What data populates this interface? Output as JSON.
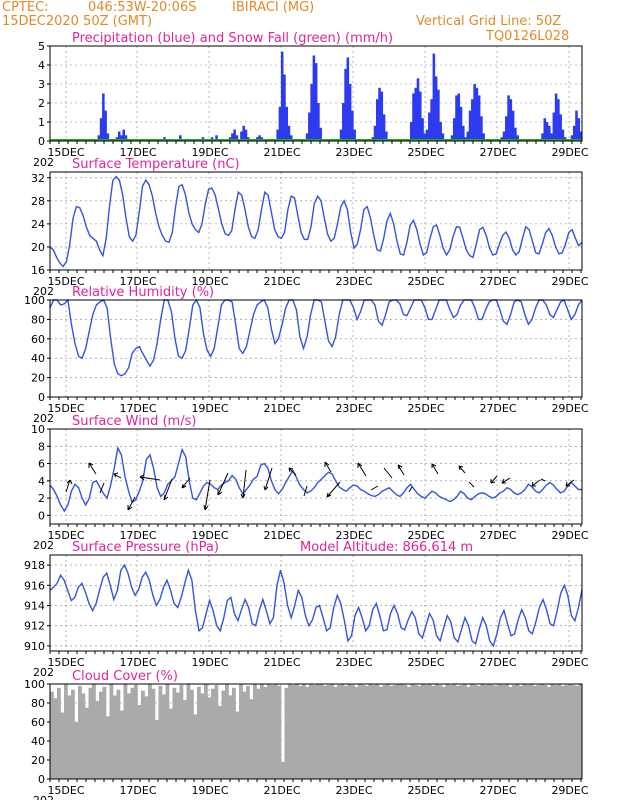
{
  "header": {
    "source": "CPTEC:",
    "coords": "046:53W-20:06S",
    "location": "IBIRACI (MG)",
    "date": "15DEC2020 50Z (GMT)",
    "grid_note": "Vertical Grid Line: 50Z",
    "model_id": "TQ0126L028"
  },
  "colors": {
    "header": "#e08a2a",
    "title": "#e0249a",
    "series": "#3355dd",
    "precip": "#2d3bf0",
    "snow": "#22aa22",
    "cloud": "#aaaaaa"
  },
  "x_labels": [
    "15DEC",
    "17DEC",
    "19DEC",
    "21DEC",
    "23DEC",
    "25DEC",
    "27DEC",
    "29DEC"
  ],
  "stub": "202",
  "chart_data": [
    {
      "type": "bar",
      "title": "Precipitation (blue) and Snow Fall (green) (mm/h)",
      "series": [
        {
          "name": "Precipitation",
          "values": [
            0,
            0,
            0,
            0,
            0,
            0,
            0,
            0,
            0,
            0,
            0,
            0,
            0,
            0,
            0,
            0,
            0,
            0,
            0,
            0,
            0,
            0.3,
            1.2,
            2.5,
            1.6,
            0.4,
            0,
            0,
            0,
            0.2,
            0.5,
            0.3,
            0.6,
            0.3,
            0,
            0,
            0,
            0,
            0,
            0,
            0,
            0,
            0,
            0,
            0,
            0,
            0,
            0,
            0,
            0,
            0.2,
            0,
            0,
            0,
            0,
            0,
            0,
            0.3,
            0,
            0,
            0,
            0,
            0,
            0,
            0,
            0,
            0,
            0.2,
            0,
            0,
            0,
            0.2,
            0,
            0.3,
            0,
            0,
            0,
            0,
            0,
            0.2,
            0.4,
            0.6,
            0.3,
            0,
            0.5,
            0.8,
            0.6,
            0.2,
            0,
            0,
            0,
            0.2,
            0.3,
            0.2,
            0,
            0,
            0,
            0,
            0,
            0,
            0.6,
            1.8,
            4.7,
            3.5,
            1.8,
            0.8,
            0.3,
            0,
            0,
            0,
            0,
            0,
            0,
            0.4,
            1.5,
            3.0,
            4.5,
            4.1,
            2.0,
            0.7,
            0,
            0,
            0,
            0,
            0,
            0,
            0,
            0,
            0.6,
            2.0,
            3.8,
            4.4,
            3.0,
            1.6,
            0.6,
            0,
            0,
            0,
            0,
            0,
            0,
            0,
            0.2,
            0.8,
            2.2,
            2.8,
            2.6,
            1.4,
            0.5,
            0,
            0,
            0,
            0,
            0,
            0,
            0,
            0,
            0,
            0,
            1.0,
            2.5,
            2.8,
            3.3,
            2.6,
            1.2,
            0.4,
            0.6,
            1.5,
            2.2,
            4.6,
            3.4,
            2.7,
            1.0,
            0.4,
            0,
            0,
            0,
            0.3,
            1.2,
            2.4,
            2.5,
            1.8,
            0.8,
            0.2,
            0.5,
            1.6,
            2.2,
            3.0,
            2.8,
            2.4,
            1.3,
            0.4,
            0,
            0,
            0,
            0,
            0,
            0,
            0,
            0.2,
            0.5,
            1.3,
            2.4,
            2.2,
            1.6,
            0.7,
            0.3,
            0,
            0,
            0,
            0,
            0,
            0,
            0,
            0,
            0,
            0,
            0.4,
            1.2,
            1.0,
            0.8,
            0.4,
            1.5,
            2.5,
            2.2,
            1.4,
            0.6,
            0.2,
            0,
            0,
            0.3,
            0.8,
            1.6,
            1.2,
            0.5
          ]
        },
        {
          "name": "Snow Fall",
          "values": [
            0
          ]
        }
      ],
      "ylim": [
        0,
        5
      ],
      "yticks": [
        0,
        1,
        2,
        3,
        4,
        5
      ]
    },
    {
      "type": "line",
      "title": "Surface Temperature (nC)",
      "series": [
        {
          "name": "Temperature",
          "values": [
            20,
            19.5,
            18.2,
            17.2,
            16.6,
            17.5,
            20.5,
            25.0,
            27.0,
            26.8,
            25.5,
            23.5,
            22.0,
            21.5,
            21.0,
            19.5,
            18.5,
            21.5,
            27.0,
            31.5,
            32.2,
            31.6,
            29.0,
            25.0,
            21.8,
            21.0,
            22.0,
            26.0,
            30.5,
            31.6,
            30.8,
            28.8,
            25.8,
            23.5,
            22.0,
            21.0,
            20.8,
            22.5,
            27.0,
            30.5,
            30.8,
            29.0,
            26.0,
            24.0,
            23.0,
            22.5,
            24.0,
            27.5,
            30.0,
            30.2,
            29.0,
            26.5,
            24.0,
            22.3,
            22.0,
            22.8,
            26.5,
            29.5,
            29.0,
            26.5,
            23.5,
            21.8,
            21.5,
            23.0,
            26.5,
            29.5,
            29.0,
            26.0,
            23.0,
            21.8,
            21.5,
            22.5,
            26.5,
            28.8,
            28.5,
            25.5,
            22.5,
            21.3,
            21.3,
            23.5,
            27.5,
            28.8,
            28.0,
            25.0,
            22.2,
            21.0,
            21.5,
            24.0,
            27.0,
            28.0,
            26.5,
            22.5,
            19.8,
            20.5,
            23.0,
            26.5,
            27.0,
            25.0,
            22.0,
            19.5,
            19.3,
            21.5,
            24.5,
            25.8,
            24.0,
            21.0,
            18.8,
            18.6,
            20.8,
            23.8,
            24.6,
            23.0,
            20.5,
            18.6,
            19.0,
            21.5,
            23.5,
            23.8,
            22.0,
            19.8,
            18.6,
            19.5,
            21.8,
            23.5,
            23.4,
            21.5,
            19.5,
            18.5,
            18.2,
            20.5,
            23.0,
            23.4,
            22.0,
            19.8,
            18.6,
            18.8,
            20.5,
            22.0,
            22.6,
            21.5,
            19.5,
            18.6,
            19.2,
            21.5,
            23.5,
            23.0,
            21.0,
            19.0,
            18.8,
            20.5,
            22.5,
            23.2,
            22.0,
            20.0,
            18.8,
            19.0,
            20.5,
            22.5,
            23.0,
            21.5,
            20.2,
            20.8
          ]
        }
      ],
      "ylim": [
        16,
        33
      ],
      "yticks": [
        16,
        20,
        24,
        28,
        32
      ]
    },
    {
      "type": "line",
      "title": "Relative Humidity (%)",
      "series": [
        {
          "name": "Relative Humidity",
          "values": [
            92,
            100,
            100,
            95,
            96,
            100,
            75,
            55,
            42,
            40,
            50,
            68,
            85,
            95,
            98,
            100,
            92,
            60,
            34,
            24,
            22,
            24,
            30,
            45,
            50,
            52,
            45,
            38,
            32,
            38,
            55,
            80,
            100,
            100,
            88,
            60,
            42,
            40,
            48,
            70,
            95,
            100,
            92,
            65,
            48,
            42,
            50,
            72,
            95,
            100,
            100,
            98,
            75,
            50,
            45,
            52,
            68,
            85,
            95,
            98,
            100,
            92,
            70,
            55,
            60,
            75,
            92,
            100,
            100,
            90,
            62,
            50,
            62,
            85,
            100,
            100,
            98,
            78,
            58,
            52,
            62,
            85,
            100,
            100,
            100,
            92,
            80,
            88,
            100,
            100,
            100,
            95,
            78,
            74,
            85,
            98,
            100,
            100,
            96,
            85,
            84,
            92,
            100,
            100,
            100,
            92,
            80,
            80,
            90,
            100,
            100,
            100,
            90,
            82,
            85,
            95,
            100,
            100,
            100,
            92,
            80,
            80,
            90,
            98,
            100,
            100,
            90,
            78,
            75,
            85,
            98,
            100,
            98,
            85,
            75,
            80,
            92,
            100,
            100,
            95,
            85,
            82,
            90,
            98,
            100,
            90,
            80,
            85,
            95,
            100
          ]
        }
      ],
      "ylim": [
        0,
        100
      ],
      "yticks": [
        0,
        20,
        40,
        60,
        80,
        100
      ]
    },
    {
      "type": "line",
      "title": "Surface Wind (m/s)",
      "series": [
        {
          "name": "Wind speed",
          "values": [
            3.5,
            3.0,
            2.2,
            1.2,
            0.5,
            1.2,
            2.8,
            3.6,
            3.2,
            2.0,
            1.2,
            2.0,
            3.8,
            4.0,
            3.2,
            2.5,
            2.0,
            3.5,
            5.5,
            7.8,
            7.0,
            4.5,
            2.8,
            1.5,
            1.8,
            2.8,
            4.0,
            6.5,
            7.0,
            5.5,
            3.2,
            2.2,
            2.6,
            3.6,
            4.0,
            4.5,
            6.0,
            7.6,
            6.8,
            4.0,
            2.0,
            1.8,
            2.6,
            3.4,
            3.8,
            3.6,
            3.2,
            3.0,
            3.5,
            3.8,
            4.0,
            4.6,
            4.2,
            3.2,
            2.5,
            3.0,
            3.5,
            4.2,
            4.5,
            5.8,
            6.0,
            5.5,
            4.0,
            3.0,
            2.5,
            3.0,
            3.8,
            4.5,
            5.2,
            4.4,
            3.5,
            3.0,
            2.6,
            2.8,
            3.2,
            3.8,
            4.2,
            4.6,
            5.0,
            4.8,
            4.0,
            3.3,
            3.0,
            2.8,
            3.2,
            3.5,
            3.4,
            3.0,
            2.8,
            2.5,
            2.3,
            2.2,
            2.4,
            2.8,
            3.0,
            3.2,
            2.8,
            2.4,
            2.2,
            2.6,
            3.2,
            3.6,
            3.0,
            2.5,
            2.2,
            2.0,
            2.4,
            2.8,
            2.6,
            2.2,
            2.0,
            1.8,
            1.6,
            1.8,
            2.2,
            2.8,
            2.5,
            2.0,
            1.8,
            2.2,
            2.5,
            2.6,
            2.5,
            2.2,
            2.0,
            2.2,
            2.6,
            2.8,
            3.2,
            3.0,
            2.6,
            2.4,
            2.6,
            3.0,
            3.6,
            3.3,
            2.8,
            2.6,
            3.0,
            3.5,
            3.8,
            3.5,
            3.0,
            2.6,
            2.8,
            3.4,
            3.8,
            3.4,
            3.0,
            3.0
          ]
        }
      ],
      "ylim": [
        -1,
        10
      ],
      "yticks": [
        0,
        2,
        4,
        6,
        8,
        10
      ]
    },
    {
      "type": "line",
      "title": "Surface Pressure (hPa)",
      "annotation": "Model Altitude: 866.614 m",
      "series": [
        {
          "name": "Pressure",
          "values": [
            915.5,
            915.8,
            916.2,
            917.0,
            916.5,
            915.5,
            914.5,
            914.8,
            915.8,
            916.2,
            915.3,
            914.2,
            913.5,
            914.2,
            915.6,
            916.8,
            917.2,
            916.0,
            914.6,
            915.5,
            917.5,
            918.0,
            917.2,
            915.8,
            915.0,
            915.6,
            916.8,
            917.3,
            916.5,
            915.0,
            914.0,
            914.6,
            915.8,
            916.5,
            915.5,
            914.2,
            913.8,
            914.8,
            916.2,
            917.5,
            916.5,
            913.5,
            911.5,
            911.8,
            913.2,
            914.5,
            913.5,
            912.0,
            911.5,
            912.8,
            914.5,
            914.8,
            913.2,
            912.5,
            913.6,
            914.6,
            913.8,
            912.2,
            912.0,
            913.5,
            914.6,
            913.5,
            912.2,
            912.8,
            916.0,
            917.5,
            916.2,
            914.0,
            912.8,
            914.0,
            915.5,
            914.8,
            913.0,
            912.0,
            912.6,
            913.8,
            914.0,
            912.8,
            911.5,
            911.8,
            913.8,
            915.0,
            914.2,
            912.5,
            910.5,
            911.0,
            913.0,
            913.8,
            912.8,
            911.5,
            912.0,
            913.6,
            914.2,
            913.0,
            911.5,
            911.6,
            913.2,
            914.0,
            913.2,
            911.8,
            911.6,
            912.6,
            913.4,
            912.8,
            911.2,
            910.8,
            912.0,
            913.2,
            912.6,
            911.0,
            910.5,
            911.8,
            913.0,
            912.4,
            910.8,
            910.4,
            911.6,
            912.8,
            912.0,
            910.5,
            910.2,
            911.6,
            912.8,
            912.0,
            910.5,
            910.0,
            911.2,
            912.8,
            913.5,
            912.2,
            911.0,
            911.2,
            912.6,
            913.6,
            912.8,
            911.5,
            911.2,
            912.4,
            913.8,
            914.6,
            913.6,
            912.2,
            912.0,
            913.5,
            915.2,
            916.0,
            915.0,
            913.0,
            912.5,
            913.8,
            915.6
          ]
        }
      ],
      "ylim": [
        909.5,
        919
      ],
      "yticks": [
        910,
        912,
        914,
        916,
        918
      ]
    },
    {
      "type": "bar",
      "title": "Cloud Cover (%)",
      "series": [
        {
          "name": "Cloud Cover",
          "values": [
            92,
            85,
            96,
            70,
            100,
            88,
            94,
            60,
            98,
            90,
            75,
            96,
            100,
            82,
            92,
            97,
            66,
            100,
            88,
            94,
            72,
            100,
            90,
            96,
            99,
            78,
            93,
            87,
            100,
            95,
            62,
            98,
            89,
            100,
            74,
            96,
            91,
            99,
            83,
            100,
            94,
            68,
            97,
            90,
            100,
            86,
            95,
            99,
            77,
            93,
            100,
            88,
            96,
            71,
            100,
            92,
            98,
            84,
            100,
            95,
            100,
            97,
            100,
            99,
            100,
            98,
            18,
            96,
            100,
            99,
            100,
            98,
            100,
            97,
            100,
            99,
            100,
            100,
            98,
            99,
            100,
            97,
            99,
            100,
            98,
            100,
            99,
            97,
            100,
            99,
            98,
            100,
            99,
            100,
            97,
            99,
            100,
            98,
            99,
            100,
            100,
            99,
            97,
            100,
            99,
            98,
            100,
            99,
            100,
            98,
            100,
            99,
            97,
            100,
            99,
            100,
            98,
            99,
            100,
            97,
            100,
            99,
            98,
            100,
            99,
            100,
            99,
            98,
            100,
            99,
            100,
            97,
            99,
            100,
            98,
            100,
            99,
            100,
            98,
            99,
            100,
            99,
            97,
            100,
            99,
            100,
            98,
            99,
            100,
            99,
            98,
            100
          ]
        }
      ],
      "ylim": [
        0,
        100
      ],
      "yticks": [
        0,
        20,
        40,
        60,
        80,
        100
      ]
    }
  ]
}
